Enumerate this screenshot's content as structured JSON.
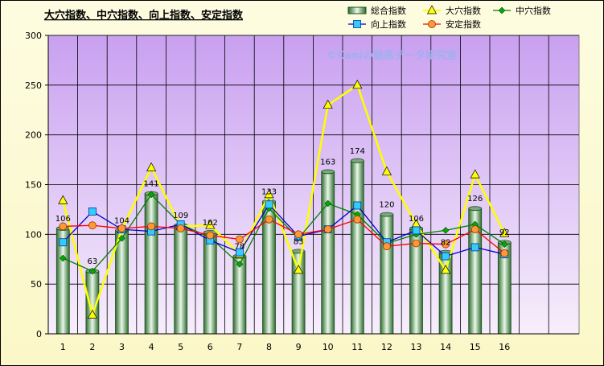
{
  "chart_data": {
    "type": "bar",
    "title": "大穴指数、中穴指数、向上指数、安定指数",
    "watermark": "©Caniの競馬データ研究室",
    "categories": [
      "1",
      "2",
      "3",
      "4",
      "5",
      "6",
      "7",
      "8",
      "9",
      "10",
      "11",
      "12",
      "13",
      "14",
      "15",
      "16"
    ],
    "ylim": [
      0,
      300
    ],
    "yticks": [
      0,
      50,
      100,
      150,
      200,
      250,
      300
    ],
    "grid": true,
    "legend_position": "top",
    "series": [
      {
        "name": "総合指数",
        "kind": "bar",
        "color": "#4a7a4a",
        "values": [
          106,
          63,
          104,
          141,
          109,
          102,
          78,
          133,
          83,
          163,
          174,
          120,
          106,
          82,
          126,
          92
        ],
        "data_labels": [
          "106",
          "63",
          "104",
          "141",
          "109",
          "102",
          "78",
          "133",
          "83",
          "163",
          "174",
          "120",
          "106",
          "82",
          "126",
          "92"
        ]
      },
      {
        "name": "大穴指数",
        "kind": "line",
        "color": "#ffff00",
        "marker": "triangle",
        "values": [
          134,
          19,
          105,
          167,
          108,
          109,
          80,
          140,
          64,
          230,
          250,
          163,
          110,
          64,
          160,
          101
        ]
      },
      {
        "name": "中穴指数",
        "kind": "line",
        "color": "#008000",
        "marker": "diamond",
        "values": [
          76,
          63,
          96,
          140,
          110,
          97,
          70,
          126,
          96,
          131,
          120,
          91,
          100,
          104,
          110,
          90
        ]
      },
      {
        "name": "向上指数",
        "kind": "line",
        "color": "#0000cc",
        "marker": "square",
        "values": [
          92,
          123,
          105,
          103,
          110,
          94,
          82,
          130,
          98,
          105,
          129,
          92,
          104,
          78,
          87,
          80
        ]
      },
      {
        "name": "安定指数",
        "kind": "line",
        "color": "#ff0000",
        "marker": "circle",
        "values": [
          108,
          109,
          106,
          108,
          106,
          99,
          95,
          115,
          100,
          105,
          115,
          88,
          91,
          90,
          105,
          81
        ]
      }
    ]
  }
}
